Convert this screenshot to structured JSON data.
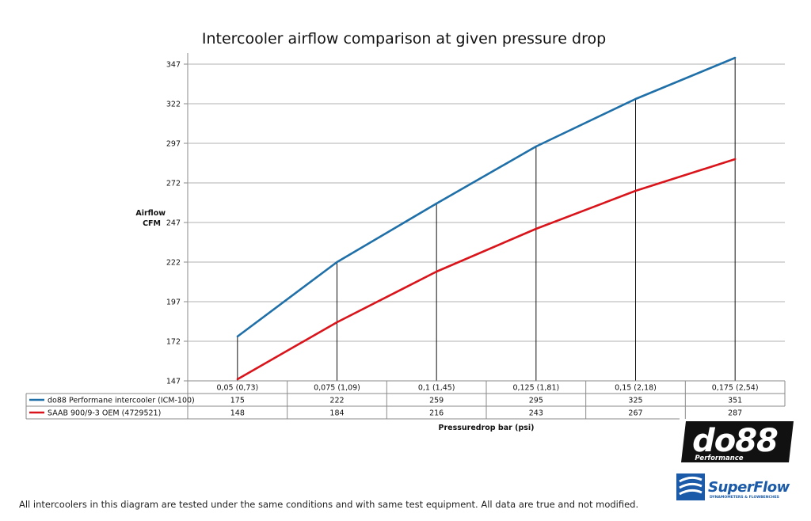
{
  "chart_data": {
    "type": "line",
    "title": "Intercooler airflow comparison at given pressure drop",
    "ylabel": [
      "Airflow",
      "CFM"
    ],
    "xlabel": "Pressuredrop bar (psi)",
    "ylim": [
      147,
      352
    ],
    "yticks": [
      147,
      172,
      197,
      222,
      247,
      272,
      297,
      322,
      347
    ],
    "categories": [
      "0,05 (0,73)",
      "0,075 (1,09)",
      "0,1 (1,45)",
      "0,125 (1,81)",
      "0,15 (2,18)",
      "0,175 (2,54)"
    ],
    "series": [
      {
        "name": "do88 Performane intercooler (ICM-100)",
        "color": "#1f6fa8",
        "values": [
          175,
          222,
          259,
          295,
          325,
          351
        ]
      },
      {
        "name": "SAAB 900/9-3 OEM (4729521)",
        "color": "#d9141b",
        "values": [
          148,
          184,
          216,
          243,
          267,
          287
        ]
      }
    ],
    "grid": true,
    "drop_lines": true,
    "data_table": true
  },
  "logos": {
    "do88_main": "do88",
    "do88_sub": "Performance",
    "superflow_main": "SuperFlow",
    "superflow_sub": "DYNAMOMETERS & FLOWBENCHES"
  },
  "footnote": "All intercoolers in this diagram are tested under the same conditions and with same test equipment. All data are true and not modified."
}
